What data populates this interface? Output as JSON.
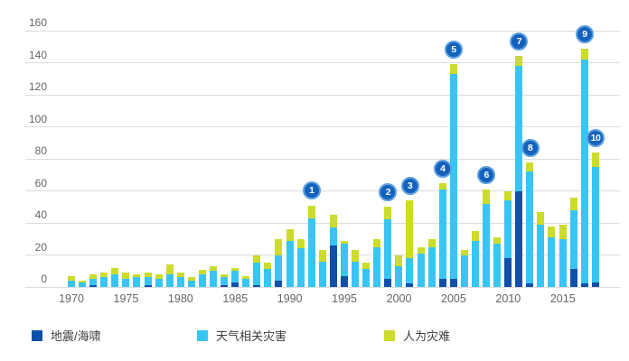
{
  "chart_data": {
    "type": "bar",
    "variant": "stacked",
    "title": "",
    "xlabel": "",
    "ylabel": "",
    "ylim": [
      0,
      160
    ],
    "ytick_step": 20,
    "yticks": [
      160,
      140,
      120,
      100,
      80,
      60,
      40,
      20,
      0
    ],
    "xticks": [
      1970,
      1975,
      1980,
      1985,
      1990,
      1995,
      2000,
      2005,
      2010,
      2015
    ],
    "grid": "horizontal",
    "legend_position": "bottom",
    "years": [
      1970,
      1971,
      1972,
      1973,
      1974,
      1975,
      1976,
      1977,
      1978,
      1979,
      1980,
      1981,
      1982,
      1983,
      1984,
      1985,
      1986,
      1987,
      1988,
      1989,
      1990,
      1991,
      1992,
      1993,
      1994,
      1995,
      1996,
      1997,
      1998,
      1999,
      2000,
      2001,
      2002,
      2003,
      2004,
      2005,
      2006,
      2007,
      2008,
      2009,
      2010,
      2011,
      2012,
      2013,
      2014,
      2015,
      2016,
      2017,
      2018
    ],
    "series": [
      {
        "name": "地震/海啸",
        "color": "#1150a8",
        "values": [
          0,
          0,
          1,
          0,
          0,
          0,
          0,
          1,
          0,
          0,
          0,
          0,
          0,
          0,
          1,
          3,
          0,
          1,
          0,
          4,
          0,
          0,
          0,
          0,
          26,
          7,
          0,
          0,
          0,
          5,
          0,
          2,
          0,
          0,
          5,
          5,
          0,
          0,
          0,
          0,
          18,
          60,
          2,
          0,
          0,
          0,
          11,
          2,
          3
        ]
      },
      {
        "name": "天气相关灾害",
        "color": "#38c5f4",
        "values": [
          4,
          3,
          4,
          6,
          8,
          5,
          6,
          5,
          5,
          8,
          6,
          4,
          8,
          10,
          5,
          7,
          5,
          14,
          11,
          16,
          29,
          24,
          43,
          16,
          11,
          20,
          16,
          11,
          25,
          37,
          13,
          16,
          21,
          25,
          56,
          128,
          20,
          29,
          52,
          27,
          36,
          78,
          70,
          39,
          31,
          30,
          37,
          140,
          72
        ]
      },
      {
        "name": "人为灾难",
        "color": "#cbdc2a",
        "values": [
          3,
          1,
          3,
          3,
          4,
          4,
          2,
          3,
          3,
          6,
          3,
          2,
          3,
          3,
          2,
          2,
          2,
          5,
          4,
          10,
          7,
          6,
          8,
          7,
          8,
          2,
          7,
          4,
          5,
          8,
          7,
          36,
          4,
          5,
          4,
          6,
          3,
          6,
          9,
          4,
          6,
          6,
          6,
          8,
          7,
          9,
          8,
          7,
          9
        ]
      }
    ],
    "badges": [
      {
        "label": "1",
        "year": 1992
      },
      {
        "label": "2",
        "year": 1999
      },
      {
        "label": "3",
        "year": 2001
      },
      {
        "label": "4",
        "year": 2004
      },
      {
        "label": "5",
        "year": 2005
      },
      {
        "label": "6",
        "year": 2008
      },
      {
        "label": "7",
        "year": 2011
      },
      {
        "label": "8",
        "year": 2012
      },
      {
        "label": "9",
        "year": 2017
      },
      {
        "label": "10",
        "year": 2018
      }
    ]
  },
  "colors": {
    "badge_fill": "#1561be",
    "badge_ring": "#5c9fdd",
    "badge_text": "#ffffff",
    "gridline": "#dcdcdc",
    "axis_text": "#63666b",
    "legend_text": "#3c3c3c",
    "background": "#ffffff"
  }
}
